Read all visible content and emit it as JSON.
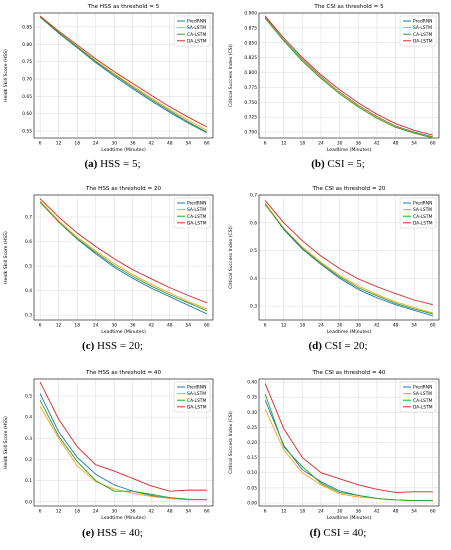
{
  "colors": {
    "PredRNN": "#1f77b4",
    "SA-LSTM": "#ff9f1c",
    "CA-LSTM": "#2ca02c",
    "DA-LSTM": "#d62728",
    "grid": "#d9d9d9"
  },
  "captions": [
    {
      "label": "(a)",
      "text": "HSS = 5;"
    },
    {
      "label": "(b)",
      "text": "CSI = 5;"
    },
    {
      "label": "(c)",
      "text": "HSS = 20;"
    },
    {
      "label": "(d)",
      "text": "CSI = 20;"
    },
    {
      "label": "(e)",
      "text": "HSS = 40;"
    },
    {
      "label": "(f)",
      "text": "CSI = 40;"
    }
  ],
  "chart_data": [
    {
      "type": "line",
      "title": "The HSS as threshold = 5",
      "xlabel": "Leadtime (Minutes)",
      "ylabel": "Heidk Skill Score (HSS)",
      "x": [
        6,
        12,
        18,
        24,
        30,
        36,
        42,
        48,
        54,
        60
      ],
      "xlim": [
        4,
        62
      ],
      "ylim": [
        0.53,
        0.89
      ],
      "yticks": [
        "0.55",
        "0.60",
        "0.65",
        "0.70",
        "0.75",
        "0.80",
        "0.85"
      ],
      "grid": true,
      "legend": "top-right",
      "series": [
        {
          "name": "PredRNN",
          "values": [
            0.878,
            0.832,
            0.79,
            0.747,
            0.708,
            0.672,
            0.637,
            0.604,
            0.573,
            0.545
          ]
        },
        {
          "name": "SA-LSTM",
          "values": [
            0.879,
            0.835,
            0.794,
            0.753,
            0.715,
            0.68,
            0.645,
            0.612,
            0.581,
            0.552
          ]
        },
        {
          "name": "CA-LSTM",
          "values": [
            0.878,
            0.834,
            0.792,
            0.75,
            0.712,
            0.676,
            0.641,
            0.608,
            0.576,
            0.547
          ]
        },
        {
          "name": "DA-LSTM",
          "values": [
            0.881,
            0.838,
            0.798,
            0.758,
            0.721,
            0.687,
            0.653,
            0.62,
            0.59,
            0.562
          ]
        }
      ]
    },
    {
      "type": "line",
      "title": "The CSI as threshold = 5",
      "xlabel": "Leadtime (Minutes)",
      "ylabel": "Critical Success Index (CSI)",
      "x": [
        6,
        12,
        18,
        24,
        30,
        36,
        42,
        48,
        54,
        60
      ],
      "xlim": [
        4,
        62
      ],
      "ylim": [
        0.69,
        0.9
      ],
      "yticks": [
        "0.700",
        "0.725",
        "0.750",
        "0.775",
        "0.800",
        "0.825",
        "0.850",
        "0.875",
        "0.900"
      ],
      "grid": true,
      "legend": "top-right",
      "series": [
        {
          "name": "PredRNN",
          "values": [
            0.893,
            0.855,
            0.822,
            0.793,
            0.767,
            0.745,
            0.726,
            0.71,
            0.7,
            0.692
          ]
        },
        {
          "name": "SA-LSTM",
          "values": [
            0.892,
            0.854,
            0.821,
            0.792,
            0.766,
            0.744,
            0.725,
            0.709,
            0.699,
            0.691
          ]
        },
        {
          "name": "CA-LSTM",
          "values": [
            0.891,
            0.853,
            0.819,
            0.79,
            0.764,
            0.742,
            0.723,
            0.708,
            0.698,
            0.69
          ]
        },
        {
          "name": "DA-LSTM",
          "values": [
            0.895,
            0.858,
            0.825,
            0.796,
            0.771,
            0.749,
            0.73,
            0.714,
            0.703,
            0.695
          ]
        }
      ]
    },
    {
      "type": "line",
      "title": "The HSS as threshold = 20",
      "xlabel": "Leadtime (Minutes)",
      "ylabel": "Heidk Skill Score (HSS)",
      "x": [
        6,
        12,
        18,
        24,
        30,
        36,
        42,
        48,
        54,
        60
      ],
      "xlim": [
        4,
        62
      ],
      "ylim": [
        0.28,
        0.79
      ],
      "yticks": [
        "0.3",
        "0.4",
        "0.5",
        "0.6",
        "0.7"
      ],
      "grid": true,
      "legend": "top-right",
      "series": [
        {
          "name": "PredRNN",
          "values": [
            0.765,
            0.68,
            0.61,
            0.55,
            0.495,
            0.45,
            0.41,
            0.375,
            0.34,
            0.305
          ]
        },
        {
          "name": "SA-LSTM",
          "values": [
            0.765,
            0.685,
            0.618,
            0.562,
            0.51,
            0.465,
            0.425,
            0.39,
            0.355,
            0.325
          ]
        },
        {
          "name": "CA-LSTM",
          "values": [
            0.76,
            0.68,
            0.612,
            0.556,
            0.502,
            0.458,
            0.418,
            0.383,
            0.35,
            0.318
          ]
        },
        {
          "name": "DA-LSTM",
          "values": [
            0.775,
            0.7,
            0.635,
            0.58,
            0.53,
            0.485,
            0.448,
            0.412,
            0.38,
            0.35
          ]
        }
      ]
    },
    {
      "type": "line",
      "title": "The CSI as threshold = 20",
      "xlabel": "Leadtime (Minutes)",
      "ylabel": "Critical Success Index (CSI)",
      "x": [
        6,
        12,
        18,
        24,
        30,
        36,
        42,
        48,
        54,
        60
      ],
      "xlim": [
        4,
        62
      ],
      "ylim": [
        0.25,
        0.7
      ],
      "yticks": [
        "0.3",
        "0.4",
        "0.5",
        "0.6",
        "0.7"
      ],
      "grid": true,
      "legend": "top-right",
      "series": [
        {
          "name": "PredRNN",
          "values": [
            0.67,
            0.575,
            0.505,
            0.45,
            0.4,
            0.36,
            0.33,
            0.305,
            0.285,
            0.265
          ]
        },
        {
          "name": "SA-LSTM",
          "values": [
            0.67,
            0.58,
            0.512,
            0.458,
            0.41,
            0.372,
            0.342,
            0.315,
            0.295,
            0.275
          ]
        },
        {
          "name": "CA-LSTM",
          "values": [
            0.665,
            0.578,
            0.508,
            0.453,
            0.405,
            0.366,
            0.337,
            0.31,
            0.29,
            0.272
          ]
        },
        {
          "name": "DA-LSTM",
          "values": [
            0.68,
            0.6,
            0.535,
            0.48,
            0.435,
            0.398,
            0.37,
            0.345,
            0.322,
            0.305
          ]
        }
      ]
    },
    {
      "type": "line",
      "title": "The HSS as threshold = 40",
      "xlabel": "Leadtime (Minutes)",
      "ylabel": "Heidk Skill Score (HSS)",
      "x": [
        6,
        12,
        18,
        24,
        30,
        36,
        42,
        48,
        54,
        60
      ],
      "xlim": [
        4,
        62
      ],
      "ylim": [
        -0.02,
        0.58
      ],
      "yticks": [
        "0.0",
        "0.1",
        "0.2",
        "0.3",
        "0.4",
        "0.5"
      ],
      "grid": true,
      "legend": "top-right",
      "series": [
        {
          "name": "PredRNN",
          "values": [
            0.51,
            0.33,
            0.21,
            0.13,
            0.08,
            0.05,
            0.03,
            0.015,
            0.01,
            0.01
          ]
        },
        {
          "name": "SA-LSTM",
          "values": [
            0.45,
            0.3,
            0.17,
            0.095,
            0.06,
            0.04,
            0.025,
            0.015,
            0.01,
            0.01
          ]
        },
        {
          "name": "CA-LSTM",
          "values": [
            0.48,
            0.31,
            0.19,
            0.1,
            0.05,
            0.05,
            0.035,
            0.02,
            0.012,
            0.01
          ]
        },
        {
          "name": "DA-LSTM",
          "values": [
            0.565,
            0.39,
            0.26,
            0.175,
            0.145,
            0.11,
            0.075,
            0.05,
            0.055,
            0.055
          ]
        }
      ]
    },
    {
      "type": "line",
      "title": "The CSI as threshold = 40",
      "xlabel": "Leadtime (Minutes)",
      "ylabel": "Critical Success Index (CSI)",
      "x": [
        6,
        12,
        18,
        24,
        30,
        36,
        42,
        48,
        54,
        60
      ],
      "xlim": [
        4,
        62
      ],
      "ylim": [
        -0.01,
        0.41
      ],
      "yticks": [
        "0.00",
        "0.05",
        "0.10",
        "0.15",
        "0.20",
        "0.25",
        "0.30",
        "0.35",
        "0.40"
      ],
      "grid": true,
      "legend": "top-right",
      "series": [
        {
          "name": "PredRNN",
          "values": [
            0.34,
            0.19,
            0.11,
            0.07,
            0.04,
            0.025,
            0.015,
            0.01,
            0.008,
            0.008
          ]
        },
        {
          "name": "SA-LSTM",
          "values": [
            0.31,
            0.175,
            0.1,
            0.06,
            0.03,
            0.02,
            0.015,
            0.01,
            0.008,
            0.007
          ]
        },
        {
          "name": "CA-LSTM",
          "values": [
            0.36,
            0.185,
            0.12,
            0.065,
            0.035,
            0.025,
            0.015,
            0.01,
            0.008,
            0.008
          ]
        },
        {
          "name": "DA-LSTM",
          "values": [
            0.395,
            0.245,
            0.15,
            0.1,
            0.08,
            0.06,
            0.045,
            0.035,
            0.037,
            0.037
          ]
        }
      ]
    }
  ]
}
